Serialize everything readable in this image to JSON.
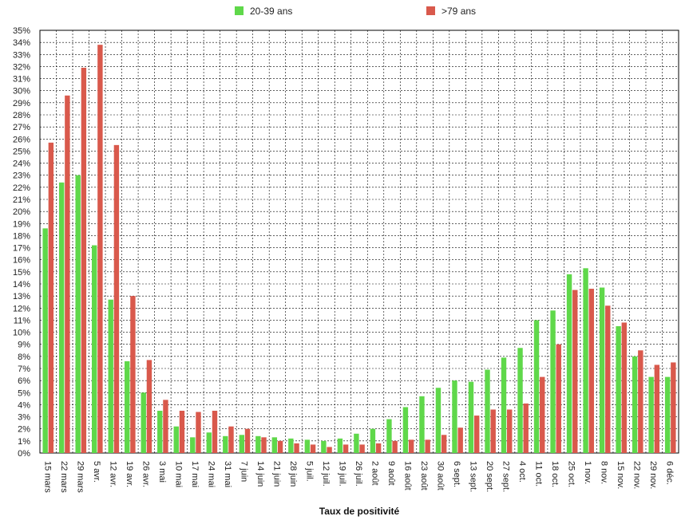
{
  "chart_data": {
    "type": "bar",
    "title": "",
    "xlabel": "Taux de positivité",
    "ylabel": "",
    "ylim": [
      0,
      35
    ],
    "yticks": [
      "0%",
      "1%",
      "2%",
      "3%",
      "4%",
      "5%",
      "6%",
      "7%",
      "8%",
      "9%",
      "10%",
      "11%",
      "12%",
      "13%",
      "14%",
      "15%",
      "16%",
      "17%",
      "18%",
      "19%",
      "20%",
      "21%",
      "22%",
      "23%",
      "24%",
      "25%",
      "26%",
      "27%",
      "28%",
      "29%",
      "30%",
      "31%",
      "32%",
      "33%",
      "34%",
      "35%"
    ],
    "grid": true,
    "legend_position": "top",
    "categories": [
      "15 mars",
      "22 mars",
      "29 mars",
      "5 avr.",
      "12 avr.",
      "19 avr.",
      "26 avr.",
      "3 mai",
      "10 mai",
      "17 mai",
      "24 mai",
      "31 mai",
      "7 juin",
      "14 juin",
      "21 juin",
      "28 juin",
      "5 juil.",
      "12 juil.",
      "19 juil.",
      "26 juil.",
      "2 août",
      "9 août",
      "16 août",
      "23 août",
      "30 août",
      "6 sept.",
      "13 sept.",
      "20 sept.",
      "27 sept.",
      "4 oct.",
      "11 oct.",
      "18 oct.",
      "25 oct.",
      "1 nov.",
      "8 nov.",
      "15 nov.",
      "22 nov.",
      "29 nov.",
      "6 déc."
    ],
    "series": [
      {
        "name": "20-39 ans",
        "color": "#5fd84a",
        "values": [
          18.6,
          22.4,
          23.0,
          17.2,
          12.7,
          7.6,
          5.0,
          3.5,
          2.2,
          1.3,
          1.7,
          1.4,
          1.5,
          1.4,
          1.3,
          1.2,
          1.1,
          1.0,
          1.2,
          1.6,
          2.0,
          2.8,
          3.8,
          4.7,
          5.4,
          6.0,
          5.9,
          6.9,
          7.9,
          8.7,
          11.0,
          11.8,
          14.8,
          15.3,
          13.7,
          10.5,
          8.0,
          6.3,
          6.3
        ]
      },
      {
        "name": ">79 ans",
        "color": "#d9594c",
        "values": [
          25.7,
          29.6,
          31.9,
          33.8,
          25.5,
          13.0,
          7.7,
          4.4,
          3.5,
          3.4,
          3.5,
          2.2,
          2.0,
          1.3,
          1.0,
          0.8,
          0.7,
          0.5,
          0.7,
          0.7,
          0.8,
          1.0,
          1.1,
          1.1,
          1.5,
          2.1,
          3.1,
          3.6,
          3.6,
          4.1,
          6.3,
          9.0,
          13.5,
          13.6,
          12.2,
          10.8,
          8.5,
          7.3,
          7.5
        ]
      }
    ]
  }
}
